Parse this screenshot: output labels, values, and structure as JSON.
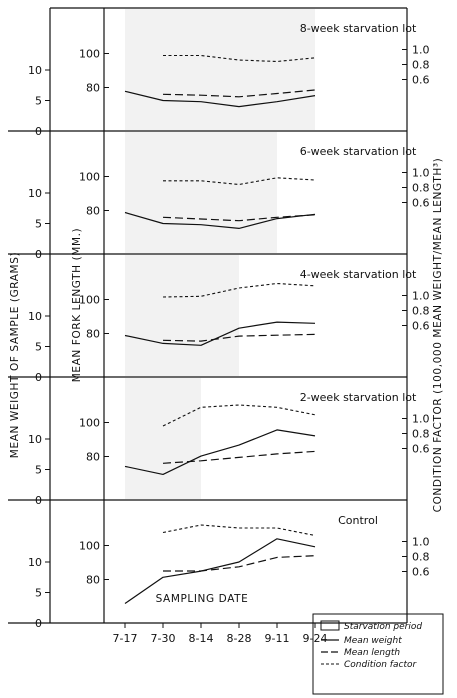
{
  "chart_data": {
    "type": "line",
    "x": [
      "7-17",
      "7-30",
      "8-14",
      "8-28",
      "9-11",
      "9-24"
    ],
    "xlabel": "SAMPLING DATE",
    "ylabel_left_outer": "MEAN WEIGHT OF SAMPLE (GRAMS)",
    "ylabel_left_inner": "MEAN FORK LENGTH (MM.)",
    "ylabel_right": "CONDITION FACTOR (100,000 MEAN WEIGHT/MEAN LENGTH³)",
    "weight_ticks": [
      "0",
      "5",
      "10"
    ],
    "length_ticks": [
      "80",
      "100"
    ],
    "condition_ticks": [
      "0.6",
      "0.8",
      "1.0"
    ],
    "legend": [
      {
        "label": "Starvation period",
        "style": "box"
      },
      {
        "label": "Mean weight",
        "style": "solid"
      },
      {
        "label": "Mean length",
        "style": "long-dash"
      },
      {
        "label": "Condition factor",
        "style": "short-dash"
      }
    ],
    "panels": [
      {
        "title": "8-week starvation lot",
        "starvation": [
          0,
          5
        ],
        "weight": [
          6.5,
          5.0,
          4.8,
          4.0,
          4.8,
          5.8
        ],
        "length": [
          null,
          76,
          75.5,
          74.5,
          76.5,
          78.5
        ],
        "condition": [
          null,
          0.92,
          0.92,
          0.86,
          0.84,
          0.89
        ]
      },
      {
        "title": "6-week starvation lot",
        "starvation": [
          0,
          4
        ],
        "weight": [
          6.8,
          5.0,
          4.8,
          4.2,
          5.8,
          6.5
        ],
        "length": [
          null,
          76,
          75,
          74,
          76,
          77.5
        ],
        "condition": [
          null,
          0.89,
          0.89,
          0.84,
          0.93,
          0.9
        ]
      },
      {
        "title": "4-week starvation lot",
        "starvation": [
          0,
          3
        ],
        "weight": [
          6.8,
          5.5,
          5.2,
          8.0,
          9.0,
          8.8
        ],
        "length": [
          null,
          76,
          75.5,
          78.5,
          79,
          79.5
        ],
        "condition": [
          null,
          0.98,
          0.99,
          1.1,
          1.16,
          1.13
        ]
      },
      {
        "title": "2-week starvation lot",
        "starvation": [
          0,
          2
        ],
        "weight": [
          5.5,
          4.2,
          7.2,
          9.0,
          11.5,
          10.5
        ],
        "length": [
          null,
          76,
          77.5,
          79.5,
          81.5,
          83
        ],
        "condition": [
          null,
          0.9,
          1.15,
          1.18,
          1.15,
          1.05
        ]
      },
      {
        "title": "Control",
        "starvation": null,
        "weight": [
          3.2,
          7.5,
          8.5,
          10.0,
          13.8,
          12.5
        ],
        "length": [
          null,
          85,
          85,
          87.5,
          93,
          94
        ],
        "condition": [
          null,
          1.12,
          1.22,
          1.18,
          1.18,
          1.08
        ]
      }
    ]
  }
}
